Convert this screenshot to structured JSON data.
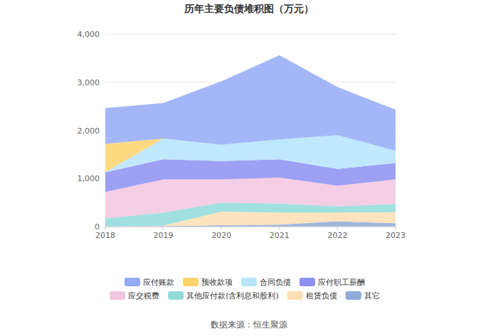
{
  "chart_data": {
    "type": "area",
    "title": "历年主要负债堆积图（万元）",
    "source": "数据来源：恒生聚源",
    "stacked": true,
    "grid": true,
    "legend": "bottom",
    "categories": [
      "2018",
      "2019",
      "2020",
      "2021",
      "2022",
      "2023"
    ],
    "series": [
      {
        "name": "应付账款",
        "color": "#93aaf7",
        "values": [
          740,
          740,
          1320,
          1750,
          1000,
          850
        ]
      },
      {
        "name": "预收款项",
        "color": "#fdd36c",
        "values": [
          590,
          0,
          0,
          0,
          0,
          0
        ]
      },
      {
        "name": "合同负债",
        "color": "#b5e4fb",
        "values": [
          0,
          430,
          340,
          410,
          700,
          260
        ]
      },
      {
        "name": "应付职工薪酬",
        "color": "#8d8ff2",
        "values": [
          410,
          420,
          380,
          380,
          350,
          340
        ]
      },
      {
        "name": "应交税费",
        "color": "#f1c6df",
        "values": [
          550,
          690,
          480,
          540,
          430,
          510
        ]
      },
      {
        "name": "其他应付款(含利息和股利)",
        "color": "#91dbdb",
        "values": [
          170,
          270,
          190,
          190,
          130,
          170
        ]
      },
      {
        "name": "租赁负债",
        "color": "#fddfb3",
        "values": [
          0,
          10,
          280,
          250,
          180,
          230
        ]
      },
      {
        "name": "其它",
        "color": "#8fa9d9",
        "values": [
          0,
          10,
          30,
          40,
          110,
          70
        ]
      }
    ],
    "ylim": [
      0,
      4000
    ],
    "yticks": [
      0,
      {
        "value": 1000,
        "label": "1,000"
      },
      {
        "value": 2000,
        "label": "2,000"
      },
      {
        "value": 3000,
        "label": "3,000"
      },
      {
        "value": 4000,
        "label": "4,000"
      }
    ]
  }
}
